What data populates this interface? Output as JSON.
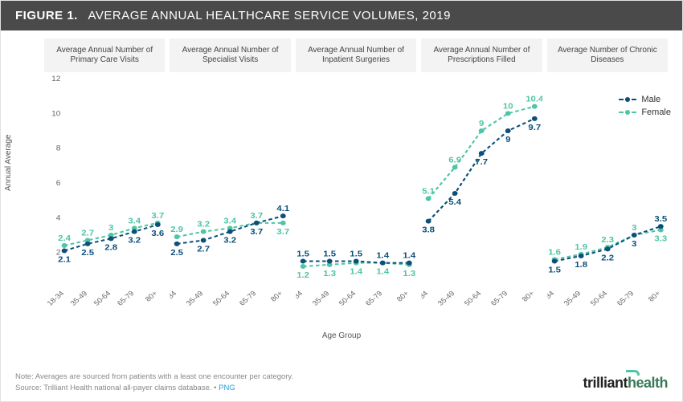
{
  "header": {
    "label": "FIGURE 1.",
    "title": "AVERAGE ANNUAL HEALTHCARE SERVICE VOLUMES, 2019"
  },
  "y_axis_title": "Annual Average",
  "x_axis_title": "Age Group",
  "ylim": [
    0,
    12
  ],
  "yticks": [
    2,
    4,
    6,
    8,
    10,
    12
  ],
  "categories": [
    "18-34",
    "35-49",
    "50-64",
    "65-79",
    "80+"
  ],
  "colors": {
    "male": "#0b4f7a",
    "female": "#4ec5a5",
    "panel_bg": "#f3f3f3",
    "grid": "#ffffff",
    "text": "#555"
  },
  "legend": [
    {
      "key": "male",
      "label": "Male"
    },
    {
      "key": "female",
      "label": "Female"
    }
  ],
  "panels": [
    {
      "title": "Average Annual Number of Primary Care Visits",
      "male": [
        2.1,
        2.5,
        2.8,
        3.2,
        3.6
      ],
      "female": [
        2.4,
        2.7,
        3.0,
        3.4,
        3.7
      ],
      "male_label_dy": [
        14,
        14,
        14,
        14,
        14
      ],
      "female_label_dy": [
        -6,
        -6,
        -6,
        -6,
        -6
      ]
    },
    {
      "title": "Average Annual Number of Specialist Visits",
      "male": [
        2.5,
        2.7,
        3.2,
        3.7,
        4.1
      ],
      "female": [
        2.9,
        3.2,
        3.4,
        3.7,
        3.7
      ],
      "male_label_dy": [
        14,
        14,
        14,
        14,
        -6
      ],
      "female_label_dy": [
        -6,
        -6,
        -6,
        -6,
        14
      ]
    },
    {
      "title": "Average Annual Number of Inpatient Surgeries",
      "male": [
        1.5,
        1.5,
        1.5,
        1.4,
        1.4
      ],
      "female": [
        1.2,
        1.3,
        1.4,
        1.4,
        1.3
      ],
      "male_label_dy": [
        -6,
        -6,
        -6,
        -6,
        -6
      ],
      "female_label_dy": [
        14,
        14,
        14,
        14,
        14
      ]
    },
    {
      "title": "Average Annual Number of Prescriptions Filled",
      "male": [
        3.8,
        5.4,
        7.7,
        9.0,
        9.7
      ],
      "female": [
        5.1,
        6.9,
        9.0,
        10.0,
        10.4
      ],
      "male_label_dy": [
        14,
        14,
        14,
        14,
        14
      ],
      "female_label_dy": [
        -6,
        -6,
        -6,
        -6,
        -6
      ]
    },
    {
      "title": "Average Number of Chronic Diseases",
      "male": [
        1.5,
        1.8,
        2.2,
        3.0,
        3.5
      ],
      "female": [
        1.6,
        1.9,
        2.3,
        3.0,
        3.3
      ],
      "male_label_dy": [
        14,
        14,
        14,
        14,
        -6
      ],
      "female_label_dy": [
        -6,
        -6,
        -6,
        -6,
        14
      ]
    }
  ],
  "footer": {
    "note": "Note: Averages are sourced from patients with a least one encounter per category.",
    "source_prefix": "Source: Trilliant Health national all-payer claims database.",
    "png_label": "PNG"
  },
  "brand": {
    "part1": "trilliant",
    "part2": "health"
  },
  "style": {
    "line_width": 2,
    "marker_radius": 3,
    "dash": "4 3",
    "label_fontsize": 10,
    "tick_fontsize": 9
  }
}
